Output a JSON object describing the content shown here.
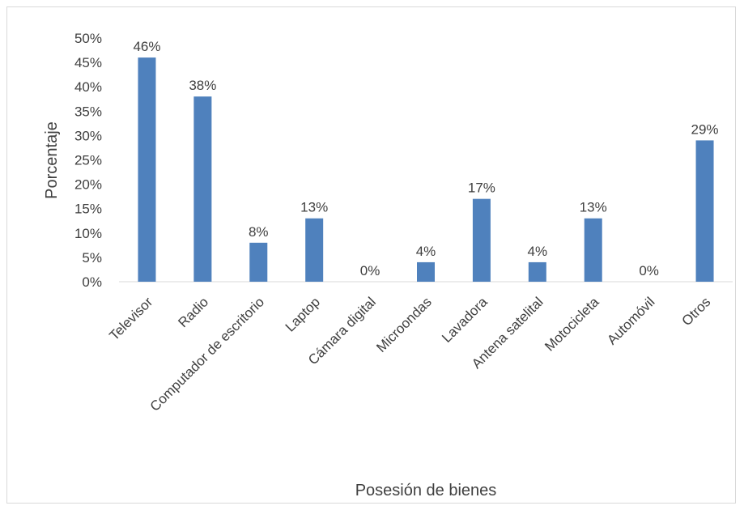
{
  "chart_data": {
    "type": "bar",
    "title": "",
    "xlabel": "Posesión de bienes",
    "ylabel": "Porcentaje",
    "categories": [
      "Televisor",
      "Radio",
      "Computador de escritorio",
      "Laptop",
      "Cámara digital",
      "Microondas",
      "Lavadora",
      "Antena satelital",
      "Motocicleta",
      "Automóvil",
      "Otros"
    ],
    "values": [
      46,
      38,
      8,
      13,
      0,
      4,
      17,
      4,
      13,
      0,
      29
    ],
    "data_labels": [
      "46%",
      "38%",
      "8%",
      "13%",
      "0%",
      "4%",
      "17%",
      "4%",
      "13%",
      "0%",
      "29%"
    ],
    "y_ticks": [
      "0%",
      "5%",
      "10%",
      "15%",
      "20%",
      "25%",
      "30%",
      "35%",
      "40%",
      "45%",
      "50%"
    ],
    "ylim": [
      0,
      50
    ],
    "grid": false,
    "legend": "none",
    "bar_color": "#4f81bd"
  }
}
